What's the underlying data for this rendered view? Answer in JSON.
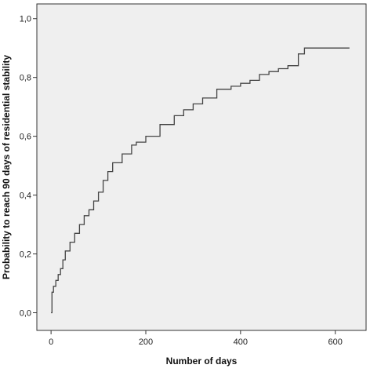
{
  "chart_data": {
    "type": "line",
    "step": true,
    "title": "",
    "xlabel": "Number of days",
    "ylabel": "Probability to reach 90 days of residential stability",
    "xlim": [
      -30,
      665
    ],
    "ylim": [
      -0.06,
      1.05
    ],
    "xticks": [
      0,
      200,
      400,
      600
    ],
    "xtick_labels": [
      "0",
      "200",
      "400",
      "600"
    ],
    "yticks": [
      0,
      0.2,
      0.4,
      0.6,
      0.8,
      1.0
    ],
    "ytick_labels": [
      "0,0",
      "0,2",
      "0,4",
      "0,6",
      "0,8",
      "1,0"
    ],
    "grid": false,
    "legend": "none",
    "series": [
      {
        "color": "#444444",
        "x": [
          0,
          2,
          5,
          10,
          15,
          20,
          25,
          30,
          40,
          50,
          60,
          70,
          80,
          90,
          100,
          110,
          120,
          130,
          150,
          170,
          180,
          200,
          230,
          260,
          280,
          300,
          320,
          350,
          380,
          400,
          420,
          440,
          460,
          480,
          500,
          520,
          522,
          530,
          535,
          600,
          630
        ],
        "y": [
          0.0,
          0.07,
          0.09,
          0.11,
          0.13,
          0.15,
          0.18,
          0.21,
          0.24,
          0.27,
          0.3,
          0.33,
          0.35,
          0.38,
          0.41,
          0.45,
          0.48,
          0.51,
          0.54,
          0.57,
          0.58,
          0.6,
          0.64,
          0.67,
          0.69,
          0.71,
          0.73,
          0.76,
          0.77,
          0.78,
          0.79,
          0.81,
          0.82,
          0.83,
          0.84,
          0.84,
          0.88,
          0.88,
          0.9,
          0.9,
          0.9
        ]
      }
    ]
  }
}
